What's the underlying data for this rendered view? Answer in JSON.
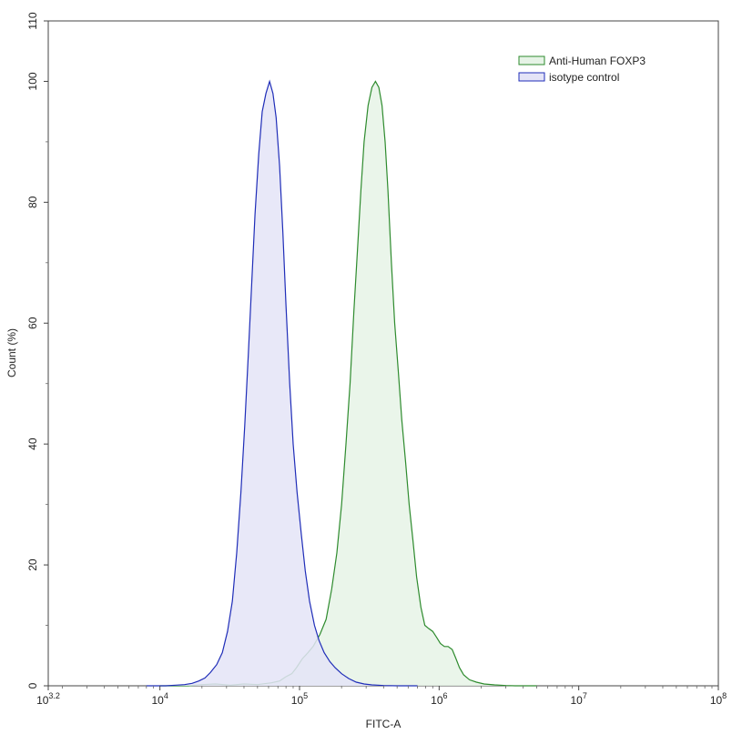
{
  "chart_data": {
    "type": "area",
    "xlabel": "FITC-A",
    "ylabel": "Count (%)",
    "x_scale": "log10",
    "xlim": [
      1585,
      100000000
    ],
    "ylim": [
      0,
      110
    ],
    "x_ticks": [
      {
        "value": 1585,
        "base": "10",
        "exp": "3.2"
      },
      {
        "value": 10000,
        "base": "10",
        "exp": "4"
      },
      {
        "value": 100000,
        "base": "10",
        "exp": "5"
      },
      {
        "value": 1000000,
        "base": "10",
        "exp": "6"
      },
      {
        "value": 10000000,
        "base": "10",
        "exp": "7"
      },
      {
        "value": 100000000,
        "base": "10",
        "exp": "8"
      }
    ],
    "y_ticks": [
      "0",
      "20",
      "40",
      "60",
      "80",
      "100",
      "110"
    ],
    "grid": false,
    "legend_position": "top-right",
    "series": [
      {
        "name": "Anti-Human FOXP3",
        "color": "#2e8b2e",
        "fill": "#e6f3e6",
        "points": [
          [
            10000,
            0
          ],
          [
            16000,
            0
          ],
          [
            20000,
            0.2
          ],
          [
            25000,
            0.3
          ],
          [
            32000,
            0.1
          ],
          [
            40000,
            0.3
          ],
          [
            50000,
            0.2
          ],
          [
            63000,
            0.5
          ],
          [
            72000,
            0.8
          ],
          [
            80000,
            1.5
          ],
          [
            88000,
            2.0
          ],
          [
            95000,
            3.0
          ],
          [
            105000,
            4.5
          ],
          [
            115000,
            5.5
          ],
          [
            125000,
            6.5
          ],
          [
            140000,
            8.5
          ],
          [
            155000,
            11
          ],
          [
            170000,
            16
          ],
          [
            185000,
            22
          ],
          [
            200000,
            30
          ],
          [
            215000,
            40
          ],
          [
            230000,
            50
          ],
          [
            245000,
            62
          ],
          [
            260000,
            72
          ],
          [
            275000,
            82
          ],
          [
            290000,
            90
          ],
          [
            310000,
            96
          ],
          [
            330000,
            99
          ],
          [
            350000,
            100
          ],
          [
            370000,
            99
          ],
          [
            390000,
            96
          ],
          [
            410000,
            90
          ],
          [
            430000,
            82
          ],
          [
            455000,
            70
          ],
          [
            480000,
            60
          ],
          [
            510000,
            52
          ],
          [
            540000,
            44
          ],
          [
            575000,
            37
          ],
          [
            610000,
            30
          ],
          [
            650000,
            24
          ],
          [
            690000,
            18
          ],
          [
            740000,
            13
          ],
          [
            790000,
            10
          ],
          [
            840000,
            9.5
          ],
          [
            900000,
            9
          ],
          [
            960000,
            8
          ],
          [
            1020000,
            7
          ],
          [
            1090000,
            6.5
          ],
          [
            1160000,
            6.5
          ],
          [
            1240000,
            6.0
          ],
          [
            1320000,
            4.5
          ],
          [
            1400000,
            3.0
          ],
          [
            1500000,
            1.8
          ],
          [
            1650000,
            1.0
          ],
          [
            1850000,
            0.6
          ],
          [
            2100000,
            0.3
          ],
          [
            2500000,
            0.15
          ],
          [
            3000000,
            0.05
          ],
          [
            3500000,
            0
          ],
          [
            5000000,
            0
          ]
        ]
      },
      {
        "name": "isotype control",
        "color": "#1f2db8",
        "fill": "#e4e4f7",
        "points": [
          [
            8000,
            0
          ],
          [
            11000,
            0
          ],
          [
            13000,
            0.1
          ],
          [
            15000,
            0.2
          ],
          [
            17000,
            0.4
          ],
          [
            19000,
            0.8
          ],
          [
            21000,
            1.3
          ],
          [
            23000,
            2.2
          ],
          [
            25500,
            3.5
          ],
          [
            28000,
            5.5
          ],
          [
            30500,
            9
          ],
          [
            33000,
            14
          ],
          [
            35500,
            22
          ],
          [
            38000,
            32
          ],
          [
            40500,
            43
          ],
          [
            43000,
            55
          ],
          [
            45500,
            67
          ],
          [
            48000,
            78
          ],
          [
            51000,
            88
          ],
          [
            54000,
            95
          ],
          [
            57500,
            98
          ],
          [
            61000,
            100
          ],
          [
            64500,
            98
          ],
          [
            68000,
            94
          ],
          [
            72000,
            86
          ],
          [
            76000,
            75
          ],
          [
            80000,
            63
          ],
          [
            85000,
            50
          ],
          [
            90000,
            40
          ],
          [
            96000,
            32
          ],
          [
            103000,
            25
          ],
          [
            110000,
            19
          ],
          [
            118000,
            14
          ],
          [
            128000,
            10
          ],
          [
            138000,
            7.5
          ],
          [
            150000,
            5.5
          ],
          [
            165000,
            4
          ],
          [
            180000,
            3
          ],
          [
            200000,
            2
          ],
          [
            225000,
            1.2
          ],
          [
            255000,
            0.6
          ],
          [
            290000,
            0.3
          ],
          [
            330000,
            0.15
          ],
          [
            400000,
            0.05
          ],
          [
            500000,
            0
          ],
          [
            700000,
            0
          ]
        ]
      }
    ]
  }
}
